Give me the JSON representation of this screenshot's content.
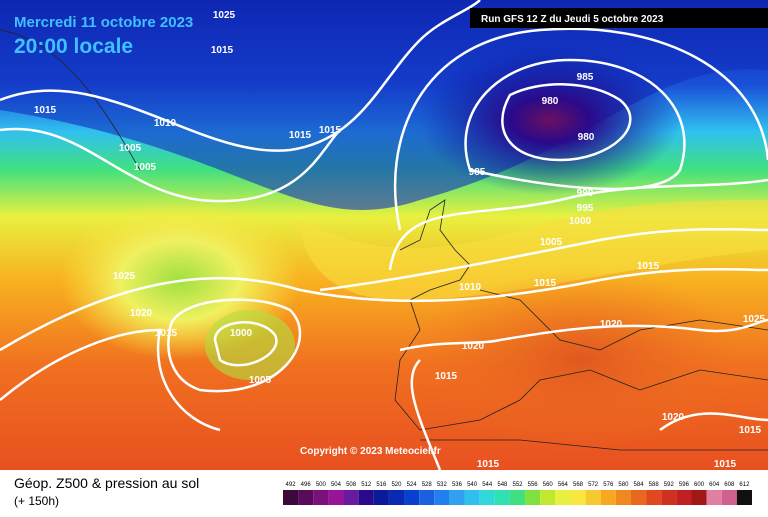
{
  "header": {
    "valid_time": "Mercredi 11 octobre 2023",
    "local_time": "20:00 locale",
    "run": "Run GFS 12 Z du Jeudi 5 octobre 2023"
  },
  "copyright": "Copyright © 2023 Meteociel.fr",
  "footer": {
    "title": "Géop. Z500 & pression au sol",
    "lead": "(+ 150h)"
  },
  "isobar_labels": [
    "1025",
    "1015",
    "1015",
    "1010",
    "1005",
    "1005",
    "1015",
    "1015",
    "985",
    "980",
    "980",
    "985",
    "990",
    "995",
    "1000",
    "1005",
    "1015",
    "1015",
    "1010",
    "1025",
    "1020",
    "1015",
    "1000",
    "1005",
    "1020",
    "1015",
    "1020",
    "1025",
    "1020",
    "1015",
    "1015",
    "1015"
  ],
  "scale": {
    "values": [
      492,
      496,
      500,
      504,
      508,
      512,
      516,
      520,
      524,
      528,
      532,
      536,
      540,
      544,
      548,
      552,
      556,
      560,
      564,
      568,
      572,
      576,
      580,
      584,
      588,
      592,
      596,
      600,
      604,
      608,
      612
    ],
    "colors": [
      "#3a0a3a",
      "#5a0a5a",
      "#7a107a",
      "#9a149a",
      "#6a1aa0",
      "#2a0a8a",
      "#0a1a9a",
      "#0a2ab4",
      "#0a40d0",
      "#1a60e0",
      "#2080f0",
      "#30a0f0",
      "#30c0f0",
      "#30d8d8",
      "#30e0b0",
      "#40e080",
      "#80e040",
      "#c0e830",
      "#e8f040",
      "#f8e840",
      "#f8c830",
      "#f8a820",
      "#f08820",
      "#e86820",
      "#e04820",
      "#d03020",
      "#c02020",
      "#a01818",
      "#e080a0",
      "#d06090",
      "#101010"
    ]
  }
}
